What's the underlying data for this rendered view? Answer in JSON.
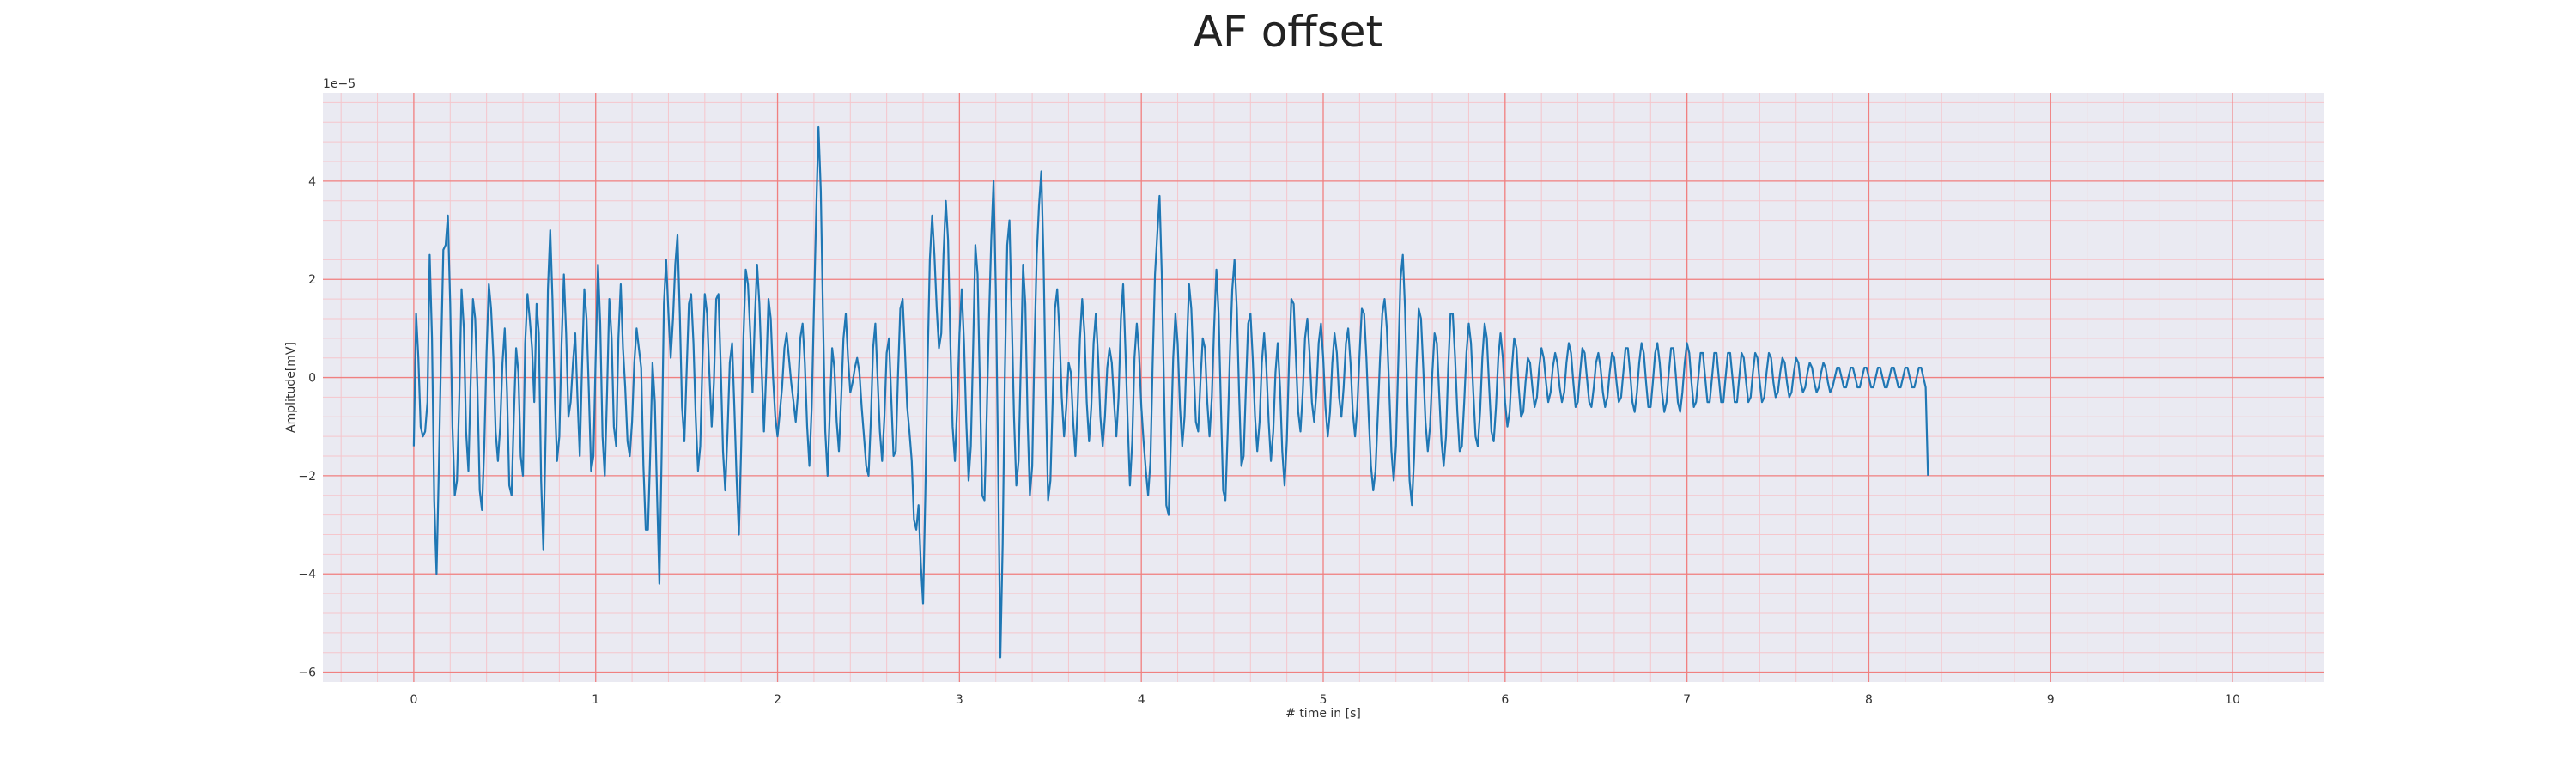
{
  "chart_data": {
    "type": "line",
    "title": "AF offset",
    "xlabel": "# time in [s]",
    "ylabel": "Amplitude[mV]",
    "y_scale_label": "1e−5",
    "xlim": [
      -0.5,
      10.5
    ],
    "ylim": [
      -6.2,
      5.8
    ],
    "x_ticks": [
      0,
      1,
      2,
      3,
      4,
      5,
      6,
      7,
      8,
      9,
      10
    ],
    "x_tick_labels": [
      "0",
      "1",
      "2",
      "3",
      "4",
      "5",
      "6",
      "7",
      "8",
      "9",
      "10"
    ],
    "y_ticks": [
      -6,
      -4,
      -2,
      0,
      2,
      4
    ],
    "y_tick_labels": [
      "−6",
      "−4",
      "−2",
      "0",
      "2",
      "4"
    ],
    "grid": true,
    "minor_grid": true,
    "colors": {
      "line": "#1f77b4",
      "plot_background": "#eaeaf2",
      "major_grid": "#f08080",
      "minor_grid": "#f5c6cc"
    },
    "series": [
      {
        "x_start": 0.0,
        "x_step": 0.0125,
        "y": [
          -1.4,
          1.3,
          0.4,
          -1.0,
          -1.2,
          -1.1,
          -0.5,
          2.5,
          0.8,
          -2.5,
          -4.0,
          -1.9,
          0.5,
          2.6,
          2.7,
          3.3,
          1.5,
          -1.0,
          -2.4,
          -2.1,
          -0.4,
          1.8,
          1.0,
          -1.1,
          -1.9,
          -0.1,
          1.6,
          1.2,
          -0.2,
          -2.3,
          -2.7,
          -1.4,
          0.5,
          1.9,
          1.4,
          0.4,
          -1.1,
          -1.7,
          -1.0,
          0.3,
          1.0,
          -0.3,
          -2.2,
          -2.4,
          -0.8,
          0.6,
          0.1,
          -1.6,
          -2.0,
          0.7,
          1.7,
          1.2,
          0.6,
          -0.5,
          1.5,
          0.9,
          -2.1,
          -3.5,
          -1.1,
          1.8,
          3.0,
          1.6,
          -0.4,
          -1.7,
          -1.2,
          0.7,
          2.1,
          0.9,
          -0.8,
          -0.5,
          0.3,
          0.9,
          -0.4,
          -1.6,
          0.2,
          1.8,
          1.2,
          -0.3,
          -1.9,
          -1.6,
          0.4,
          2.3,
          1.1,
          -1.2,
          -2.0,
          -0.3,
          1.6,
          0.8,
          -1.0,
          -1.4,
          0.8,
          1.9,
          0.6,
          -0.2,
          -1.3,
          -1.6,
          -0.9,
          0.3,
          1.0,
          0.6,
          0.2,
          -1.8,
          -3.1,
          -3.1,
          -1.5,
          0.3,
          -0.5,
          -2.4,
          -4.2,
          -1.6,
          1.5,
          2.4,
          1.3,
          0.4,
          1.2,
          2.3,
          2.9,
          1.3,
          -0.6,
          -1.3,
          0.1,
          1.5,
          1.7,
          0.7,
          -0.8,
          -1.9,
          -1.4,
          0.4,
          1.7,
          1.3,
          0.1,
          -1.0,
          -0.1,
          1.6,
          1.7,
          0.2,
          -1.5,
          -2.3,
          -1.1,
          0.3,
          0.7,
          -0.6,
          -2.1,
          -3.2,
          -1.4,
          0.8,
          2.2,
          1.9,
          0.9,
          -0.3,
          1.2,
          2.3,
          1.5,
          0.2,
          -1.1,
          0.1,
          1.6,
          1.2,
          0.0,
          -0.8,
          -1.2,
          -0.7,
          -0.2,
          0.6,
          0.9,
          0.4,
          -0.1,
          -0.5,
          -0.9,
          -0.3,
          0.8,
          1.1,
          0.3,
          -1.0,
          -1.8,
          -0.6,
          1.4,
          3.4,
          5.1,
          3.8,
          1.2,
          -1.1,
          -2.0,
          -0.7,
          0.6,
          0.2,
          -0.9,
          -1.5,
          -0.4,
          0.8,
          1.3,
          0.4,
          -0.3,
          -0.1,
          0.2,
          0.4,
          0.1,
          -0.6,
          -1.2,
          -1.8,
          -2.0,
          -0.9,
          0.6,
          1.1,
          0.0,
          -1.1,
          -1.7,
          -0.8,
          0.5,
          0.8,
          -0.4,
          -1.6,
          -1.5,
          0.1,
          1.4,
          1.6,
          0.6,
          -0.6,
          -1.1,
          -1.7,
          -2.9,
          -3.1,
          -2.6,
          -3.8,
          -4.6,
          -2.4,
          0.3,
          2.4,
          3.3,
          2.5,
          1.4,
          0.6,
          0.9,
          2.5,
          3.6,
          2.8,
          0.7,
          -1.0,
          -1.7,
          -0.6,
          0.9,
          1.8,
          0.7,
          -0.9,
          -2.1,
          -1.4,
          0.6,
          2.7,
          2.1,
          -0.2,
          -2.4,
          -2.5,
          -0.8,
          1.2,
          2.8,
          4.0,
          1.8,
          -1.7,
          -5.7,
          -3.4,
          0.1,
          2.7,
          3.2,
          1.2,
          -0.8,
          -2.2,
          -1.7,
          0.3,
          2.3,
          1.5,
          -0.9,
          -2.4,
          -1.8,
          0.6,
          2.5,
          3.5,
          4.2,
          2.4,
          -0.4,
          -2.5,
          -2.1,
          -0.5,
          1.4,
          1.8,
          0.9,
          -0.4,
          -1.2,
          -0.6,
          0.3,
          0.1,
          -0.9,
          -1.6,
          -0.6,
          0.8,
          1.6,
          0.9,
          -0.5,
          -1.3,
          -0.6,
          0.7,
          1.3,
          0.4,
          -0.8,
          -1.4,
          -0.8,
          0.2,
          0.6,
          0.3,
          -0.5,
          -1.2,
          -0.4,
          1.2,
          1.9,
          0.6,
          -0.9,
          -2.2,
          -1.3,
          0.4,
          1.1,
          0.5,
          -0.6,
          -1.3,
          -1.9,
          -2.4,
          -1.7,
          0.3,
          2.1,
          2.9,
          3.7,
          2.1,
          -0.3,
          -2.6,
          -2.8,
          -1.3,
          0.4,
          1.3,
          0.7,
          -0.6,
          -1.4,
          -0.8,
          0.6,
          1.9,
          1.4,
          0.2,
          -0.9,
          -1.1,
          -0.1,
          0.8,
          0.6,
          -0.5,
          -1.2,
          -0.4,
          1.0,
          2.2,
          1.3,
          -0.6,
          -2.3,
          -2.5,
          -1.1,
          0.5,
          1.8,
          2.4,
          1.4,
          -0.3,
          -1.8,
          -1.6,
          -0.2,
          1.1,
          1.3,
          0.4,
          -0.8,
          -1.5,
          -0.9,
          0.3,
          0.9,
          0.2,
          -0.9,
          -1.7,
          -1.1,
          0.1,
          0.7,
          -0.2,
          -1.5,
          -2.2,
          -1.3,
          0.4,
          1.6,
          1.5,
          0.4,
          -0.7,
          -1.1,
          -0.3,
          0.8,
          1.2,
          0.5,
          -0.5,
          -0.9,
          -0.3,
          0.7,
          1.1,
          0.4,
          -0.6,
          -1.2,
          -0.7,
          0.3,
          0.9,
          0.5,
          -0.4,
          -0.8,
          -0.2,
          0.7,
          1.0,
          0.3,
          -0.7,
          -1.2,
          -0.6,
          0.5,
          1.4,
          1.3,
          0.4,
          -0.8,
          -1.8,
          -2.3,
          -1.9,
          -0.8,
          0.4,
          1.3,
          1.6,
          1.0,
          -0.2,
          -1.5,
          -2.1,
          -1.4,
          0.3,
          2.0,
          2.5,
          1.4,
          -0.5,
          -2.1,
          -2.6,
          -1.6,
          0.2,
          1.4,
          1.2,
          0.2,
          -0.9,
          -1.5,
          -1.0,
          0.1,
          0.9,
          0.7,
          -0.3,
          -1.3,
          -1.8,
          -1.2,
          0.2,
          1.3,
          1.3,
          0.4,
          -0.7,
          -1.5,
          -1.4,
          -0.5,
          0.5,
          1.1,
          0.7,
          -0.3,
          -1.2,
          -1.4,
          -0.7,
          0.4,
          1.1,
          0.8,
          -0.2,
          -1.1,
          -1.3,
          -0.6,
          0.4,
          0.9,
          0.4,
          -0.5,
          -1.0,
          -0.7,
          0.2,
          0.8,
          0.6,
          -0.2,
          -0.8,
          -0.7,
          -0.1,
          0.4,
          0.3,
          -0.2,
          -0.6,
          -0.4,
          0.2,
          0.6,
          0.4,
          -0.1,
          -0.5,
          -0.3,
          0.2,
          0.5,
          0.3,
          -0.2,
          -0.5,
          -0.3,
          0.3,
          0.7,
          0.5,
          -0.1,
          -0.6,
          -0.5,
          0.1,
          0.6,
          0.5,
          0.0,
          -0.5,
          -0.6,
          -0.2,
          0.3,
          0.5,
          0.2,
          -0.3,
          -0.6,
          -0.4,
          0.1,
          0.5,
          0.4,
          -0.1,
          -0.5,
          -0.4,
          0.1,
          0.6,
          0.6,
          0.1,
          -0.5,
          -0.7,
          -0.3,
          0.3,
          0.7,
          0.5,
          -0.1,
          -0.6,
          -0.6,
          -0.1,
          0.5,
          0.7,
          0.3,
          -0.3,
          -0.7,
          -0.5,
          0.1,
          0.6,
          0.6,
          0.1,
          -0.5,
          -0.7,
          -0.3,
          0.3,
          0.7,
          0.5,
          -0.1,
          -0.6,
          -0.5,
          0.0,
          0.5,
          0.5,
          0.0,
          -0.5,
          -0.5,
          0.0,
          0.5,
          0.5,
          0.0,
          -0.5,
          -0.5,
          0.0,
          0.5,
          0.5,
          0.0,
          -0.5,
          -0.5,
          0.0,
          0.5,
          0.4,
          -0.1,
          -0.5,
          -0.4,
          0.1,
          0.5,
          0.4,
          -0.1,
          -0.5,
          -0.4,
          0.1,
          0.5,
          0.4,
          -0.1,
          -0.4,
          -0.3,
          0.1,
          0.4,
          0.3,
          -0.1,
          -0.4,
          -0.3,
          0.1,
          0.4,
          0.3,
          -0.1,
          -0.3,
          -0.2,
          0.1,
          0.3,
          0.2,
          -0.1,
          -0.3,
          -0.2,
          0.1,
          0.3,
          0.2,
          -0.1,
          -0.3,
          -0.2,
          0.0,
          0.2,
          0.2,
          0.0,
          -0.2,
          -0.2,
          0.0,
          0.2,
          0.2,
          0.0,
          -0.2,
          -0.2,
          0.0,
          0.2,
          0.2,
          0.0,
          -0.2,
          -0.2,
          0.0,
          0.2,
          0.2,
          0.0,
          -0.2,
          -0.2,
          0.0,
          0.2,
          0.2,
          0.0,
          -0.2,
          -0.2,
          0.0,
          0.2,
          0.2,
          0.0,
          -0.2,
          -0.2,
          0.0,
          0.2,
          0.2,
          0.0,
          -0.2,
          -2.0
        ]
      }
    ]
  }
}
